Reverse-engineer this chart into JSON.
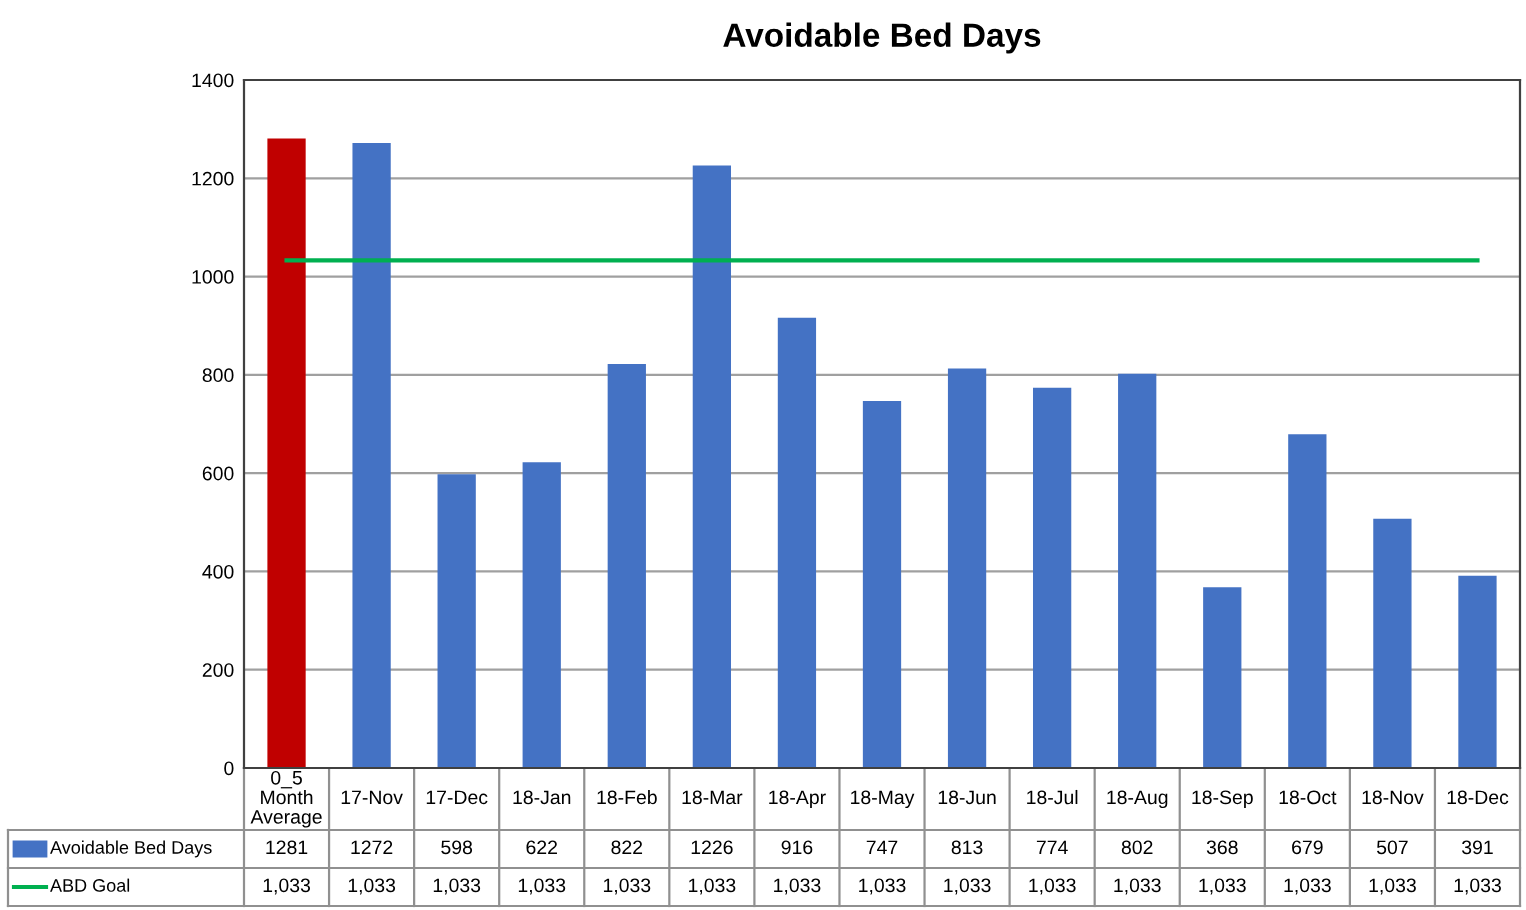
{
  "chart_data": {
    "type": "bar",
    "title": "Avoidable Bed Days",
    "categories": [
      "0_5 Month Average",
      "17-Nov",
      "17-Dec",
      "18-Jan",
      "18-Feb",
      "18-Mar",
      "18-Apr",
      "18-May",
      "18-Jun",
      "18-Jul",
      "18-Aug",
      "18-Sep",
      "18-Oct",
      "18-Nov",
      "18-Dec"
    ],
    "series": [
      {
        "name": "Avoidable Bed Days",
        "color": "#4472c4",
        "colors": [
          "#c00000",
          "#4472c4",
          "#4472c4",
          "#4472c4",
          "#4472c4",
          "#4472c4",
          "#4472c4",
          "#4472c4",
          "#4472c4",
          "#4472c4",
          "#4472c4",
          "#4472c4",
          "#4472c4",
          "#4472c4",
          "#4472c4"
        ],
        "values": [
          1281,
          1272,
          598,
          622,
          822,
          1226,
          916,
          747,
          813,
          774,
          802,
          368,
          679,
          507,
          391
        ],
        "value_labels": [
          "1281",
          "1272",
          "598",
          "622",
          "822",
          "1226",
          "916",
          "747",
          "813",
          "774",
          "802",
          "368",
          "679",
          "507",
          "391"
        ]
      },
      {
        "name": "ABD Goal",
        "type": "line",
        "color": "#00b050",
        "values": [
          1033,
          1033,
          1033,
          1033,
          1033,
          1033,
          1033,
          1033,
          1033,
          1033,
          1033,
          1033,
          1033,
          1033,
          1033
        ],
        "value_labels": [
          "1,033",
          "1,033",
          "1,033",
          "1,033",
          "1,033",
          "1,033",
          "1,033",
          "1,033",
          "1,033",
          "1,033",
          "1,033",
          "1,033",
          "1,033",
          "1,033",
          "1,033"
        ]
      }
    ],
    "ylim": [
      0,
      1400
    ],
    "yticks": [
      0,
      200,
      400,
      600,
      800,
      1000,
      1200,
      1400
    ],
    "grid": "y",
    "legend": "bottom"
  }
}
